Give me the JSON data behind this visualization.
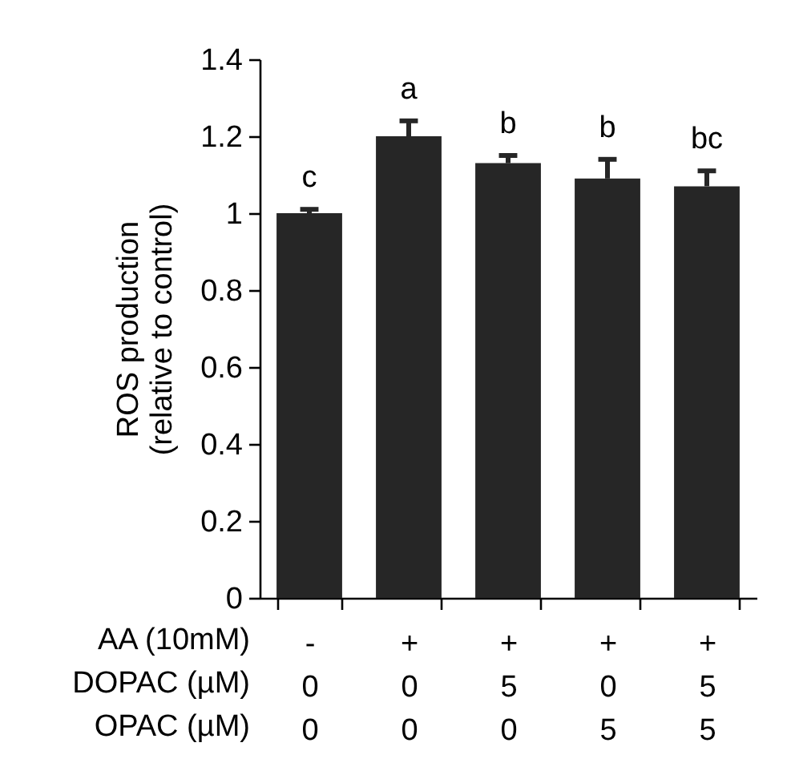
{
  "chart_data": {
    "type": "bar",
    "ylabel": "ROS production\n(relative to control)",
    "xlabel": "AA (10mM)\nDOPAC (µM)\nOPAC (µM)",
    "categories": [
      "-\n0\n0",
      "+\n0\n0",
      "+\n5\n0",
      "+\n0\n5",
      "+\n5\n5"
    ],
    "values": [
      1.0,
      1.2,
      1.13,
      1.09,
      1.07
    ],
    "errors": [
      [
        1.0,
        1.01
      ],
      [
        1.2,
        1.24
      ],
      [
        1.13,
        1.15
      ],
      [
        1.09,
        1.14
      ],
      [
        1.07,
        1.11
      ]
    ],
    "color": "#262626",
    "ylim": [
      0,
      1.4
    ],
    "yticks": [
      0,
      0.2,
      0.4,
      0.6,
      0.8,
      1,
      1.2,
      1.4
    ],
    "grid": false,
    "annotations": [
      "c",
      "a",
      "b",
      "b",
      "bc"
    ]
  }
}
